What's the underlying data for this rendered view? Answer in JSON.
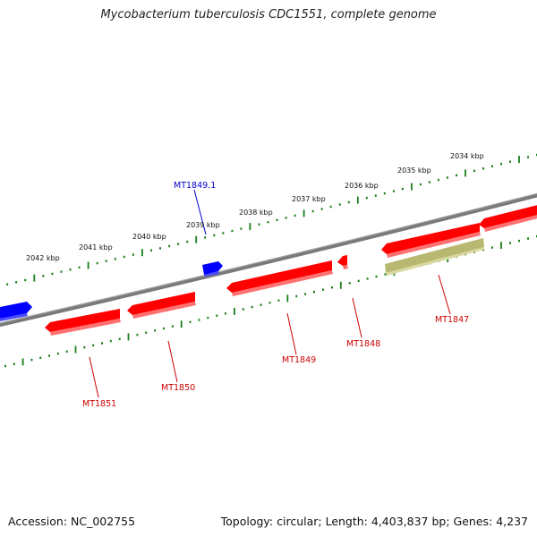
{
  "title": "Mycobacterium tuberculosis CDC1551, complete genome",
  "accession": "Accession: NC_002755",
  "summary": "Topology: circular; Length: 4,403,837 bp; Genes: 4,237",
  "colors": {
    "backbone": "#808080",
    "tick": "#1a7f1a",
    "forward_gene": "#0000ff",
    "reverse_gene": "#ff0000",
    "pseudo_gene": "#b8b870",
    "forward_label": "#0000cc",
    "reverse_label": "#cc0000"
  },
  "scale": {
    "outer_ticks": [
      "2042 kbp",
      "2041 kbp",
      "2040 kbp",
      "2039 kbp",
      "2038 kbp",
      "2037 kbp",
      "2036 kbp",
      "2035 kbp",
      "2034 kbp"
    ]
  },
  "genes": [
    {
      "name": "MT1849.1",
      "strand": "forward",
      "kind": "cds"
    },
    {
      "name": "MT1851",
      "strand": "reverse",
      "kind": "cds"
    },
    {
      "name": "MT1850",
      "strand": "reverse",
      "kind": "cds"
    },
    {
      "name": "MT1849",
      "strand": "reverse",
      "kind": "cds"
    },
    {
      "name": "MT1848",
      "strand": "reverse",
      "kind": "cds"
    },
    {
      "name": "MT1847",
      "strand": "reverse",
      "kind": "pseudo"
    }
  ]
}
